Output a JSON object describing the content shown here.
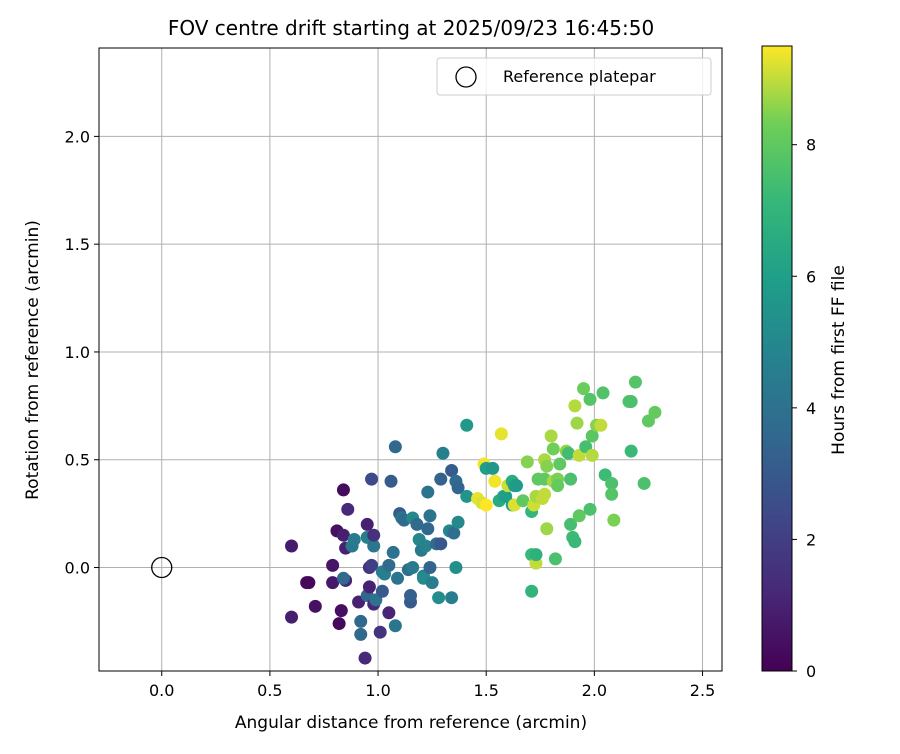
{
  "chart_data": {
    "type": "scatter",
    "title": "FOV centre drift starting at 2025/09/23 16:45:50",
    "xlabel": "Angular distance from reference (arcmin)",
    "ylabel": "Rotation from reference (arcmin)",
    "xlim": [
      -0.29,
      2.59
    ],
    "ylim": [
      -0.48,
      2.41
    ],
    "xticks": [
      "0.0",
      "0.5",
      "1.0",
      "1.5",
      "2.0",
      "2.5"
    ],
    "xtick_values": [
      0,
      0.5,
      1.0,
      1.5,
      2.0,
      2.5
    ],
    "yticks": [
      "0.0",
      "0.5",
      "1.0",
      "1.5",
      "2.0"
    ],
    "ytick_values": [
      0,
      0.5,
      1.0,
      1.5,
      2.0
    ],
    "grid": true,
    "legend": {
      "position": "top-right",
      "entries": [
        "Reference platepar"
      ]
    },
    "reference_point": {
      "label": "Reference platepar",
      "x": 0.0,
      "y": 0.0
    },
    "colorbar": {
      "label": "Hours from first FF file",
      "colormap": "viridis",
      "range": [
        0,
        9.5
      ],
      "ticks": [
        "0",
        "2",
        "4",
        "6",
        "8"
      ],
      "tick_values": [
        0,
        2,
        4,
        6,
        8
      ]
    },
    "columns": [
      "x",
      "y",
      "hours"
    ],
    "points": [
      [
        0.6,
        0.1,
        0.8
      ],
      [
        0.6,
        -0.23,
        0.9
      ],
      [
        0.67,
        -0.07,
        0.3
      ],
      [
        0.68,
        -0.07,
        0.2
      ],
      [
        0.71,
        -0.18,
        0.5
      ],
      [
        0.79,
        0.01,
        0.6
      ],
      [
        0.79,
        -0.07,
        0.7
      ],
      [
        0.81,
        0.17,
        0.5
      ],
      [
        0.83,
        -0.2,
        0.4
      ],
      [
        0.82,
        -0.26,
        0.2
      ],
      [
        0.84,
        0.36,
        0.3
      ],
      [
        0.85,
        0.09,
        1.0
      ],
      [
        0.84,
        0.15,
        0.9
      ],
      [
        0.85,
        -0.06,
        1.1
      ],
      [
        0.86,
        0.27,
        1.2
      ],
      [
        0.84,
        -0.05,
        3.7
      ],
      [
        0.88,
        0.1,
        4.3
      ],
      [
        0.89,
        0.13,
        4.4
      ],
      [
        0.91,
        -0.16,
        1.0
      ],
      [
        0.92,
        -0.31,
        3.7
      ],
      [
        0.92,
        -0.25,
        3.6
      ],
      [
        0.94,
        -0.42,
        1.2
      ],
      [
        0.95,
        0.2,
        1.0
      ],
      [
        0.95,
        0.14,
        4.6
      ],
      [
        0.95,
        -0.13,
        3.5
      ],
      [
        0.96,
        0.0,
        1.5
      ],
      [
        0.96,
        -0.09,
        1.0
      ],
      [
        0.97,
        0.01,
        2.0
      ],
      [
        0.97,
        0.41,
        2.4
      ],
      [
        0.98,
        0.1,
        4.2
      ],
      [
        0.98,
        -0.17,
        1.2
      ],
      [
        0.98,
        0.15,
        1.5
      ],
      [
        0.99,
        -0.15,
        4.0
      ],
      [
        1.01,
        -0.3,
        1.6
      ],
      [
        1.02,
        -0.11,
        3.0
      ],
      [
        1.02,
        -0.02,
        4.5
      ],
      [
        1.03,
        -0.03,
        4.6
      ],
      [
        1.05,
        0.01,
        3.7
      ],
      [
        1.05,
        -0.21,
        1.1
      ],
      [
        1.06,
        0.4,
        3.1
      ],
      [
        1.07,
        0.07,
        4.0
      ],
      [
        1.08,
        0.56,
        3.6
      ],
      [
        1.08,
        -0.27,
        4.2
      ],
      [
        1.09,
        -0.05,
        4.1
      ],
      [
        1.1,
        0.25,
        3.1
      ],
      [
        1.11,
        0.23,
        4.1
      ],
      [
        1.12,
        0.22,
        3.7
      ],
      [
        1.14,
        -0.01,
        3.9
      ],
      [
        1.15,
        -0.16,
        3.0
      ],
      [
        1.15,
        -0.13,
        3.3
      ],
      [
        1.16,
        0.23,
        5.0
      ],
      [
        1.16,
        0.0,
        4.4
      ],
      [
        1.18,
        0.2,
        3.7
      ],
      [
        1.19,
        0.13,
        4.9
      ],
      [
        1.2,
        0.08,
        4.3
      ],
      [
        1.21,
        -0.04,
        4.7
      ],
      [
        1.22,
        0.1,
        4.8
      ],
      [
        1.21,
        -0.05,
        5.1
      ],
      [
        1.23,
        0.35,
        4.1
      ],
      [
        1.23,
        0.18,
        3.6
      ],
      [
        1.24,
        0.0,
        3.4
      ],
      [
        1.24,
        0.24,
        4.1
      ],
      [
        1.25,
        -0.07,
        4.5
      ],
      [
        1.27,
        0.11,
        3.8
      ],
      [
        1.28,
        -0.14,
        5.2
      ],
      [
        1.29,
        0.11,
        2.9
      ],
      [
        1.29,
        0.41,
        3.4
      ],
      [
        1.3,
        0.53,
        4.6
      ],
      [
        1.33,
        0.17,
        4.9
      ],
      [
        1.34,
        0.45,
        3.1
      ],
      [
        1.34,
        -0.14,
        4.5
      ],
      [
        1.35,
        0.16,
        3.9
      ],
      [
        1.36,
        0.0,
        5.3
      ],
      [
        1.36,
        0.4,
        3.8
      ],
      [
        1.37,
        0.21,
        5.0
      ],
      [
        1.37,
        0.37,
        3.5
      ],
      [
        1.41,
        0.66,
        5.7
      ],
      [
        1.41,
        0.33,
        5.5
      ],
      [
        1.46,
        0.32,
        9.3
      ],
      [
        1.48,
        0.3,
        9.2
      ],
      [
        1.49,
        0.48,
        9.4
      ],
      [
        1.5,
        0.29,
        9.5
      ],
      [
        1.5,
        0.46,
        6.0
      ],
      [
        1.53,
        0.46,
        5.6
      ],
      [
        1.54,
        0.4,
        9.4
      ],
      [
        1.56,
        0.31,
        6.5
      ],
      [
        1.57,
        0.62,
        9.3
      ],
      [
        1.58,
        0.33,
        6.3
      ],
      [
        1.59,
        0.33,
        6.0
      ],
      [
        1.6,
        0.38,
        9.1
      ],
      [
        1.62,
        0.29,
        6.0
      ],
      [
        1.62,
        0.4,
        6.6
      ],
      [
        1.63,
        0.29,
        9.2
      ],
      [
        1.63,
        0.38,
        6.1
      ],
      [
        1.64,
        0.38,
        5.8
      ],
      [
        1.67,
        0.31,
        8.0
      ],
      [
        1.69,
        0.49,
        8.5
      ],
      [
        1.71,
        0.26,
        7.1
      ],
      [
        1.71,
        -0.11,
        7.0
      ],
      [
        1.71,
        0.06,
        7.2
      ],
      [
        1.72,
        0.29,
        9.1
      ],
      [
        1.73,
        0.02,
        9.0
      ],
      [
        1.73,
        0.06,
        6.8
      ],
      [
        1.73,
        0.33,
        8.8
      ],
      [
        1.74,
        0.41,
        8.0
      ],
      [
        1.76,
        0.32,
        9.0
      ],
      [
        1.77,
        0.5,
        8.8
      ],
      [
        1.77,
        0.41,
        8.0
      ],
      [
        1.77,
        0.34,
        9.0
      ],
      [
        1.78,
        0.18,
        8.7
      ],
      [
        1.78,
        0.47,
        8.5
      ],
      [
        1.8,
        0.61,
        8.8
      ],
      [
        1.81,
        0.55,
        8.3
      ],
      [
        1.81,
        0.4,
        8.8
      ],
      [
        1.82,
        0.04,
        7.6
      ],
      [
        1.83,
        0.41,
        8.4
      ],
      [
        1.83,
        0.38,
        8.1
      ],
      [
        1.84,
        0.48,
        8.0
      ],
      [
        1.87,
        0.54,
        8.6
      ],
      [
        1.88,
        0.53,
        7.4
      ],
      [
        1.89,
        0.2,
        7.5
      ],
      [
        1.89,
        0.41,
        7.6
      ],
      [
        1.9,
        0.14,
        7.3
      ],
      [
        1.91,
        0.12,
        7.2
      ],
      [
        1.91,
        0.75,
        8.9
      ],
      [
        1.92,
        0.67,
        8.7
      ],
      [
        1.93,
        0.24,
        8.0
      ],
      [
        1.93,
        0.52,
        9.0
      ],
      [
        1.95,
        0.83,
        8.2
      ],
      [
        1.96,
        0.56,
        7.5
      ],
      [
        1.98,
        0.27,
        7.6
      ],
      [
        1.98,
        0.78,
        7.8
      ],
      [
        1.99,
        0.52,
        8.9
      ],
      [
        1.99,
        0.61,
        7.9
      ],
      [
        2.01,
        0.66,
        8.5
      ],
      [
        2.03,
        0.66,
        9.0
      ],
      [
        2.04,
        0.81,
        7.7
      ],
      [
        2.05,
        0.43,
        7.3
      ],
      [
        2.08,
        0.39,
        7.6
      ],
      [
        2.08,
        0.34,
        7.8
      ],
      [
        2.09,
        0.22,
        8.4
      ],
      [
        2.16,
        0.77,
        7.7
      ],
      [
        2.17,
        0.77,
        7.6
      ],
      [
        2.17,
        0.54,
        7.2
      ],
      [
        2.19,
        0.86,
        7.8
      ],
      [
        2.23,
        0.39,
        7.6
      ],
      [
        2.25,
        0.68,
        8.0
      ],
      [
        2.28,
        0.72,
        8.1
      ]
    ]
  }
}
